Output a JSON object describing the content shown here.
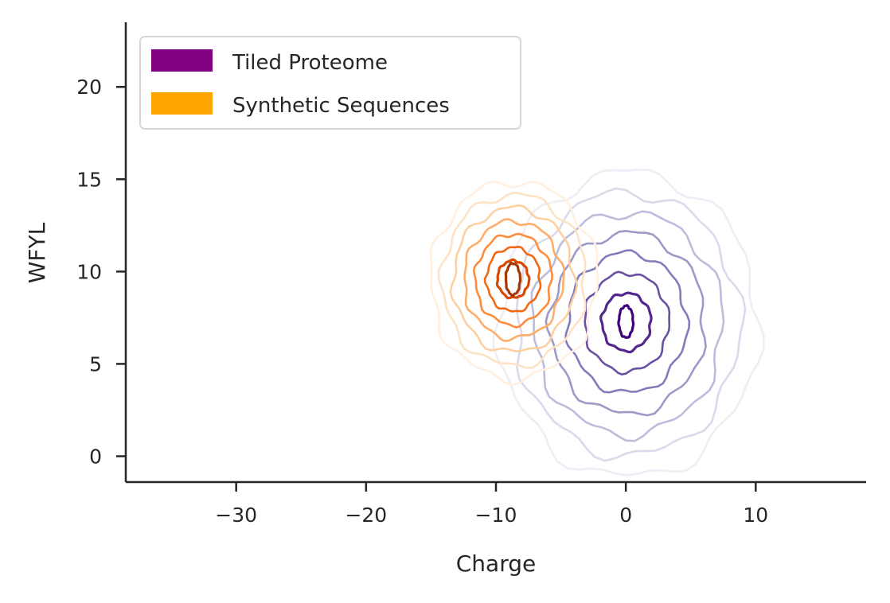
{
  "chart_data": {
    "type": "kde-contour",
    "xlabel": "Charge",
    "ylabel": "WFYL",
    "xlim": [
      -38.5,
      18.5
    ],
    "ylim": [
      -1.4,
      23.5
    ],
    "xticks": [
      -30,
      -20,
      -10,
      0,
      10
    ],
    "xtick_labels": [
      "−30",
      "−20",
      "−10",
      "0",
      "10"
    ],
    "yticks": [
      0,
      5,
      10,
      15,
      20
    ],
    "ytick_labels": [
      "0",
      "5",
      "10",
      "15",
      "20"
    ],
    "grid": false,
    "legend_position": "top-left",
    "series": [
      {
        "name": "Tiled Proteome",
        "legend_color": "#800080",
        "center": [
          0,
          7.3
        ],
        "outer_extent_x": [
          -10.5,
          9.5
        ],
        "outer_extent_y": [
          -0.2,
          16.3
        ],
        "level_colors": [
          "#efedf5",
          "#dadaeb",
          "#bcbddc",
          "#9e9ac8",
          "#807dba",
          "#6a51a3",
          "#54278f",
          "#3f007d"
        ]
      },
      {
        "name": "Synthetic Sequences",
        "legend_color": "#ffa500",
        "center": [
          -8.7,
          9.6
        ],
        "outer_extent_x": [
          -15.3,
          -2.5
        ],
        "outer_extent_y": [
          5,
          15.7
        ],
        "level_colors": [
          "#fff0e1",
          "#fee2c5",
          "#fdd0a2",
          "#fdae6b",
          "#fd8d3c",
          "#f16913",
          "#d94801",
          "#a63603"
        ]
      }
    ]
  }
}
